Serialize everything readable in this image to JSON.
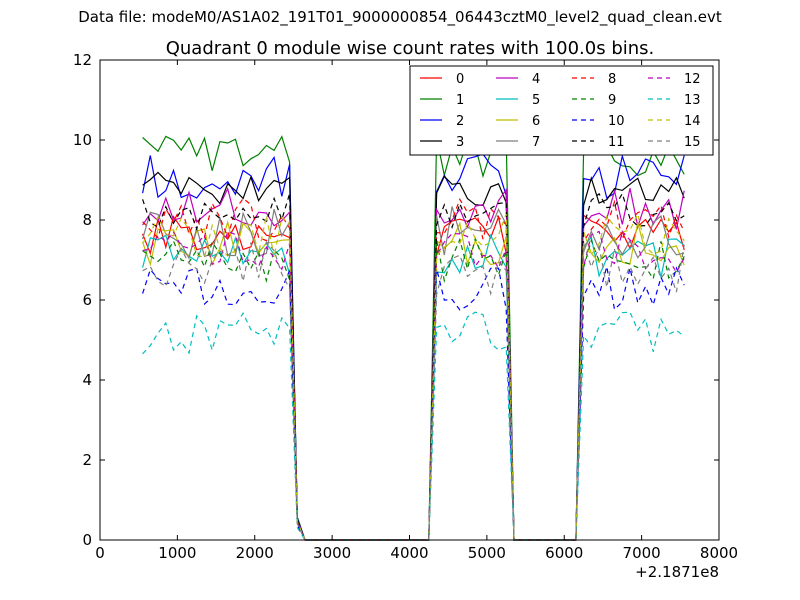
{
  "header": {
    "data_file": "Data file: modeM0/AS1A02_191T01_9000000854_06443cztM0_level2_quad_clean.evt"
  },
  "chart_data": {
    "type": "line",
    "title": "Quadrant 0 module wise count rates with 100.0s bins.",
    "xlabel": "",
    "ylabel": "",
    "x_offset_label": "+2.1871e8",
    "xlim": [
      0,
      8000
    ],
    "ylim": [
      0,
      12
    ],
    "x_ticks": [
      "0",
      "1000",
      "2000",
      "3000",
      "4000",
      "5000",
      "6000",
      "7000",
      "8000"
    ],
    "y_ticks": [
      "0",
      "2",
      "4",
      "6",
      "8",
      "10",
      "12"
    ],
    "grid": false,
    "legend_position": "top-right",
    "legend_columns": 4,
    "segments": [
      [
        550,
        2450
      ],
      [
        4300,
        5300
      ],
      [
        6200,
        7550
      ]
    ],
    "series": [
      {
        "name": "0",
        "color": "#ff0000",
        "dash": "solid",
        "level": 7.6,
        "amp": 0.25
      },
      {
        "name": "1",
        "color": "#008000",
        "dash": "solid",
        "level": 9.6,
        "amp": 0.25
      },
      {
        "name": "2",
        "color": "#0000ff",
        "dash": "solid",
        "level": 9.1,
        "amp": 0.25
      },
      {
        "name": "3",
        "color": "#000000",
        "dash": "solid",
        "level": 8.8,
        "amp": 0.22
      },
      {
        "name": "4",
        "color": "#bf00bf",
        "dash": "solid",
        "level": 8.3,
        "amp": 0.25
      },
      {
        "name": "5",
        "color": "#00bfbf",
        "dash": "solid",
        "level": 7.1,
        "amp": 0.25
      },
      {
        "name": "6",
        "color": "#bfbf00",
        "dash": "solid",
        "level": 7.4,
        "amp": 0.25
      },
      {
        "name": "7",
        "color": "#7f7f7f",
        "dash": "solid",
        "level": 7.7,
        "amp": 0.3
      },
      {
        "name": "8",
        "color": "#ff0000",
        "dash": "dashed",
        "level": 8.0,
        "amp": 0.25
      },
      {
        "name": "9",
        "color": "#008000",
        "dash": "dashed",
        "level": 7.0,
        "amp": 0.25
      },
      {
        "name": "10",
        "color": "#0000ff",
        "dash": "dashed",
        "level": 6.3,
        "amp": 0.25
      },
      {
        "name": "11",
        "color": "#000000",
        "dash": "dashed",
        "level": 8.2,
        "amp": 0.22
      },
      {
        "name": "12",
        "color": "#bf00bf",
        "dash": "dashed",
        "level": 7.2,
        "amp": 0.25
      },
      {
        "name": "13",
        "color": "#00bfbf",
        "dash": "dashed",
        "level": 5.2,
        "amp": 0.25
      },
      {
        "name": "14",
        "color": "#bfbf00",
        "dash": "dashed",
        "level": 7.6,
        "amp": 0.25
      },
      {
        "name": "15",
        "color": "#7f7f7f",
        "dash": "dashed",
        "level": 6.8,
        "amp": 0.3
      }
    ]
  }
}
